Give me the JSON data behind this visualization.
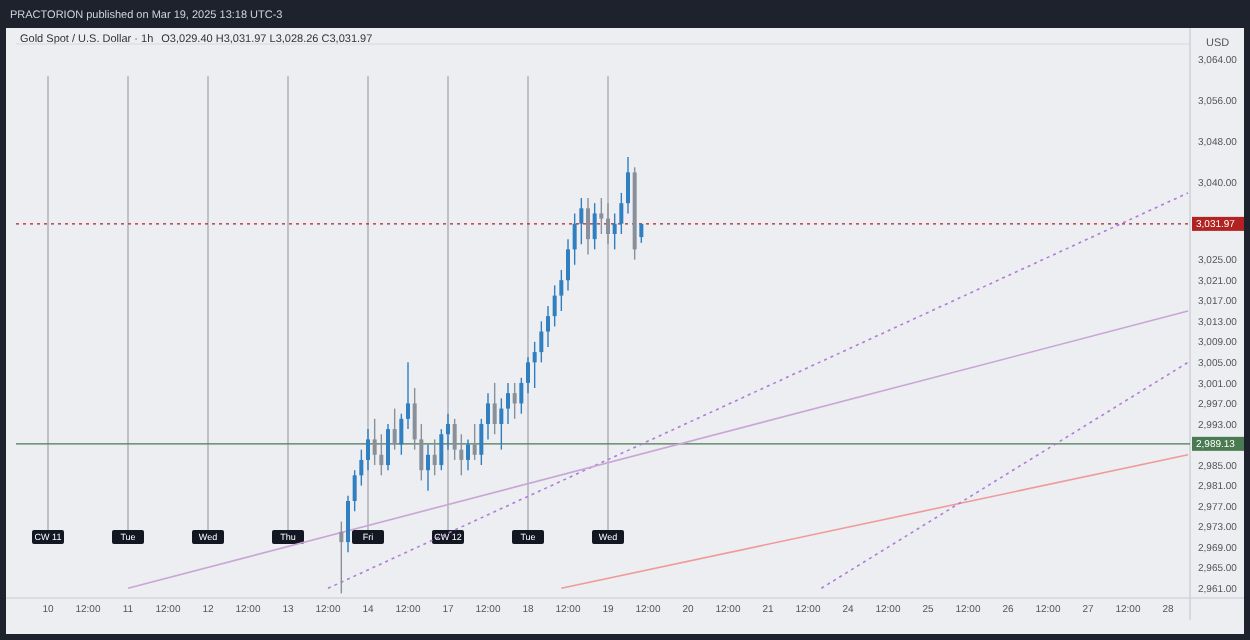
{
  "chart_data": {
    "type": "candlestick",
    "title": "Gold Spot / U.S. Dollar · 1h",
    "subtitle": "O3,029.40 H3,031.97 L3,028.26 C3,031.97",
    "annotations": [
      "PRACTORION published on Mar 19, 2025 13:18 UTC-3",
      {
        "text": "CW 11",
        "x": "10",
        "y": 2971
      },
      {
        "text": "Tue",
        "x": "11",
        "y": 2971
      },
      {
        "text": "Wed",
        "x": "12",
        "y": 2971
      },
      {
        "text": "Thu",
        "x": "13",
        "y": 2971
      },
      {
        "text": "Fri",
        "x": "14",
        "y": 2971
      },
      {
        "text": "CW 12",
        "x": "17",
        "y": 2971
      },
      {
        "text": "Tue",
        "x": "18",
        "y": 2971
      },
      {
        "text": "Wed",
        "x": "19",
        "y": 2971
      }
    ],
    "ylabel": "USD",
    "categories": [
      null,
      null,
      null,
      null,
      "10",
      null,
      null,
      null,
      null,
      null,
      "12:00",
      null,
      null,
      null,
      null,
      null,
      "11",
      null,
      null,
      null,
      null,
      null,
      "12:00",
      null,
      null,
      null,
      null,
      null,
      "12",
      null,
      null,
      null,
      null,
      null,
      "12:00",
      null,
      null,
      null,
      null,
      null,
      "13",
      null,
      null,
      null,
      null,
      null,
      "12:00",
      null,
      null,
      null,
      null,
      null,
      "14",
      null,
      null,
      null,
      null,
      null,
      "12:00",
      null,
      null,
      null,
      null,
      null,
      "17",
      null,
      null,
      null,
      null,
      null,
      "12:00",
      null,
      null,
      null,
      null,
      null,
      "18",
      null,
      null,
      null,
      null,
      null,
      "12:00",
      null,
      null,
      null,
      null,
      null,
      "19",
      null,
      null,
      null,
      null,
      null,
      "12:00",
      null,
      null,
      null,
      null,
      null,
      "20",
      null,
      null,
      null,
      null,
      null,
      "12:00",
      null,
      null,
      null,
      null,
      null,
      "21",
      null,
      null,
      null,
      null,
      null,
      "12:00",
      null,
      null,
      null,
      null,
      null,
      "24",
      null,
      null,
      null,
      null,
      null,
      "12:00",
      null,
      null,
      null,
      null,
      null,
      "25",
      null,
      null,
      null,
      null,
      null,
      "12:00",
      null,
      null,
      null,
      null,
      null,
      "26",
      null,
      null,
      null,
      null,
      null,
      "12:00",
      null,
      null,
      null,
      null,
      null,
      "27",
      null,
      null,
      null,
      null,
      null,
      "12:00",
      null,
      null,
      null,
      null,
      null,
      "28",
      null,
      null,
      null
    ],
    "colors": [
      null,
      null,
      null,
      null,
      null,
      null,
      null,
      null,
      null,
      null,
      null,
      null,
      null,
      null,
      null,
      null,
      null,
      null,
      null,
      null,
      null,
      null,
      null,
      null,
      null,
      null,
      null,
      null,
      null,
      null,
      null,
      null,
      null,
      null,
      null,
      null,
      null,
      null,
      null,
      null,
      null,
      null,
      null,
      null,
      null,
      null,
      null,
      null,
      "#8a9099",
      "#2f7fc1",
      "#2f7fc1",
      "#2f7fc1",
      "#2f7fc1",
      "#8a9099",
      "#8a9099",
      "#2f7fc1",
      "#8a9099",
      "#2f7fc1",
      "#2f7fc1",
      "#8a9099",
      "#8a9099",
      "#2f7fc1",
      "#8a9099",
      "#2f7fc1",
      "#2f7fc1",
      "#8a9099",
      "#8a9099",
      "#2f7fc1",
      "#8a9099",
      "#2f7fc1",
      "#2f7fc1",
      "#8a9099",
      "#2f7fc1",
      "#2f7fc1",
      "#8a9099",
      "#2f7fc1",
      "#2f7fc1",
      "#2f7fc1",
      "#2f7fc1",
      "#2f7fc1",
      "#2f7fc1",
      "#2f7fc1",
      "#2f7fc1",
      "#2f7fc1",
      "#2f7fc1",
      "#8a9099",
      "#2f7fc1",
      "#8a9099",
      "#8a9099",
      "#2f7fc1",
      "#2f7fc1",
      "#2f7fc1",
      "#8a9099",
      "#2f7fc1",
      null,
      null,
      null,
      null,
      null,
      null,
      null,
      null,
      null,
      null,
      null,
      null,
      null,
      null,
      null,
      null,
      null,
      null,
      null,
      null,
      null,
      null,
      null,
      null,
      null,
      null,
      null,
      null,
      null,
      null,
      null,
      null,
      null,
      null,
      null,
      null,
      null,
      null,
      null,
      null,
      null,
      null,
      null,
      null,
      null,
      null,
      null,
      null,
      null,
      null,
      null,
      null,
      null,
      null,
      null,
      null,
      null,
      null,
      null,
      null,
      null,
      null,
      null,
      null,
      null,
      null,
      null,
      null,
      null,
      null,
      null,
      null,
      null,
      null,
      null,
      null,
      null,
      null,
      null,
      null,
      null,
      null
    ],
    "ohlc": [
      null,
      null,
      null,
      null,
      null,
      null,
      null,
      null,
      null,
      null,
      null,
      null,
      null,
      null,
      null,
      null,
      null,
      null,
      null,
      null,
      null,
      null,
      null,
      null,
      null,
      null,
      null,
      null,
      null,
      null,
      null,
      null,
      null,
      null,
      null,
      null,
      null,
      null,
      null,
      null,
      null,
      null,
      null,
      null,
      null,
      null,
      null,
      null,
      [
        2972,
        2974,
        2960,
        2970
      ],
      [
        2970,
        2979,
        2968,
        2978
      ],
      [
        2978,
        2984,
        2976,
        2983
      ],
      [
        2983,
        2988,
        2981,
        2986
      ],
      [
        2986,
        2992,
        2984,
        2990
      ],
      [
        2990,
        2994,
        2985,
        2987
      ],
      [
        2987,
        2991,
        2983,
        2985
      ],
      [
        2985,
        2993,
        2984,
        2992
      ],
      [
        2992,
        2996,
        2988,
        2989
      ],
      [
        2989,
        2995,
        2987,
        2994
      ],
      [
        2994,
        3005,
        2992,
        2997
      ],
      [
        2997,
        3000,
        2988,
        2990
      ],
      [
        2990,
        2993,
        2982,
        2984
      ],
      [
        2984,
        2989,
        2980,
        2987
      ],
      [
        2987,
        2990,
        2983,
        2985
      ],
      [
        2985,
        2992,
        2984,
        2991
      ],
      [
        2991,
        2995,
        2988,
        2993
      ],
      [
        2993,
        2994,
        2986,
        2988
      ],
      [
        2988,
        2991,
        2983,
        2986
      ],
      [
        2986,
        2990,
        2984,
        2989
      ],
      [
        2989,
        2993,
        2986,
        2987
      ],
      [
        2987,
        2994,
        2985,
        2993
      ],
      [
        2993,
        2999,
        2990,
        2997
      ],
      [
        2997,
        3001,
        2991,
        2993
      ],
      [
        2993,
        2998,
        2988,
        2996
      ],
      [
        2996,
        3001,
        2993,
        2999
      ],
      [
        2999,
        3001,
        2994,
        2997
      ],
      [
        2997,
        3002,
        2995,
        3001
      ],
      [
        3001,
        3006,
        2999,
        3005
      ],
      [
        3005,
        3009,
        3000,
        3007
      ],
      [
        3007,
        3013,
        3005,
        3011
      ],
      [
        3011,
        3016,
        3008,
        3014
      ],
      [
        3014,
        3020,
        3012,
        3018
      ],
      [
        3018,
        3023,
        3015,
        3021
      ],
      [
        3021,
        3029,
        3019,
        3027
      ],
      [
        3027,
        3034,
        3024,
        3032
      ],
      [
        3032,
        3037,
        3028,
        3035
      ],
      [
        3035,
        3037,
        3026,
        3029
      ],
      [
        3029,
        3036,
        3027,
        3034
      ],
      [
        3034,
        3037,
        3030,
        3033
      ],
      [
        3033,
        3036,
        3028,
        3030
      ],
      [
        3030,
        3034,
        3027,
        3032
      ],
      [
        3032,
        3038,
        3030,
        3036
      ],
      [
        3036,
        3045,
        3034,
        3042
      ],
      [
        3042,
        3043,
        3025,
        3027
      ],
      [
        3029.4,
        3031.97,
        3028.26,
        3031.97
      ],
      null,
      null,
      null,
      null,
      null,
      null,
      null,
      null,
      null,
      null,
      null,
      null,
      null,
      null,
      null,
      null,
      null,
      null,
      null,
      null,
      null,
      null,
      null,
      null,
      null,
      null,
      null,
      null,
      null,
      null,
      null,
      null,
      null,
      null,
      null,
      null,
      null,
      null,
      null,
      null,
      null,
      null,
      null,
      null,
      null,
      null,
      null,
      null,
      null,
      null,
      null,
      null,
      null,
      null,
      null,
      null,
      null,
      null,
      null,
      null,
      null,
      null,
      null,
      null,
      null,
      null,
      null,
      null,
      null,
      null,
      null,
      null,
      null,
      null,
      null,
      null,
      null,
      null,
      null,
      null,
      null,
      null
    ],
    "series": [
      {
        "type": "line",
        "color": "#b07cd8",
        "line_style": "dotted",
        "values": [
          null,
          null,
          null,
          null,
          null,
          null,
          null,
          null,
          null,
          null,
          null,
          null,
          null,
          null,
          null,
          null,
          null,
          null,
          null,
          null,
          null,
          null,
          null,
          null,
          null,
          null,
          null,
          null,
          null,
          null,
          null,
          null,
          null,
          null,
          null,
          null,
          null,
          null,
          null,
          null,
          null,
          null,
          null,
          null,
          null,
          null,
          2961,
          null,
          null,
          null,
          null,
          null,
          null,
          null,
          null,
          null,
          null,
          null,
          null,
          null,
          null,
          null,
          null,
          null,
          null,
          null,
          null,
          null,
          null,
          null,
          null,
          null,
          null,
          null,
          null,
          null,
          null,
          null,
          null,
          null,
          null,
          null,
          null,
          null,
          null,
          null,
          null,
          null,
          null,
          null,
          null,
          null,
          null,
          null,
          null,
          null,
          null,
          null,
          null,
          null,
          null,
          null,
          null,
          null,
          null,
          null,
          null,
          null,
          null,
          null,
          null,
          null,
          null,
          null,
          null,
          null,
          null,
          null,
          null,
          null,
          null,
          null,
          null,
          null,
          null,
          null,
          null,
          null,
          null,
          null,
          null,
          null,
          null,
          null,
          null,
          null,
          null,
          null,
          null,
          null,
          null,
          null,
          null,
          null,
          null,
          null,
          null,
          null,
          null,
          null,
          null,
          null,
          null,
          null,
          null,
          null,
          null,
          null,
          null,
          null,
          null,
          null,
          null,
          null,
          null,
          null,
          null,
          null,
          null,
          null,
          null,
          null,
          null,
          null,
          null,
          3038
        ]
      },
      {
        "type": "line",
        "color": "#c9a6d6",
        "line_style": "solid",
        "values": [
          null,
          null,
          null,
          null,
          null,
          null,
          null,
          null,
          null,
          null,
          null,
          null,
          null,
          null,
          null,
          null,
          2961,
          null,
          null,
          null,
          null,
          null,
          null,
          null,
          null,
          null,
          null,
          null,
          null,
          null,
          null,
          null,
          null,
          null,
          null,
          null,
          null,
          null,
          null,
          null,
          null,
          null,
          null,
          null,
          null,
          null,
          null,
          null,
          null,
          null,
          null,
          null,
          null,
          null,
          null,
          null,
          null,
          null,
          null,
          null,
          null,
          null,
          null,
          null,
          null,
          null,
          null,
          null,
          null,
          null,
          null,
          null,
          null,
          null,
          null,
          null,
          null,
          null,
          null,
          null,
          null,
          null,
          null,
          null,
          null,
          null,
          null,
          null,
          null,
          null,
          null,
          null,
          null,
          null,
          null,
          null,
          null,
          null,
          null,
          null,
          null,
          null,
          null,
          null,
          null,
          null,
          null,
          null,
          null,
          null,
          null,
          null,
          null,
          null,
          null,
          null,
          null,
          null,
          null,
          null,
          null,
          null,
          null,
          null,
          null,
          null,
          null,
          null,
          null,
          null,
          null,
          null,
          null,
          null,
          null,
          null,
          null,
          null,
          null,
          null,
          null,
          null,
          null,
          null,
          null,
          null,
          null,
          null,
          null,
          null,
          null,
          null,
          null,
          null,
          null,
          null,
          null,
          null,
          null,
          null,
          null,
          null,
          null,
          null,
          null,
          null,
          null,
          null,
          null,
          null,
          null,
          null,
          null,
          null,
          null,
          3015
        ]
      },
      {
        "type": "line",
        "color": "#f09a9a",
        "line_style": "solid",
        "values": [
          null,
          null,
          null,
          null,
          null,
          null,
          null,
          null,
          null,
          null,
          null,
          null,
          null,
          null,
          null,
          null,
          null,
          null,
          null,
          null,
          null,
          null,
          null,
          null,
          null,
          null,
          null,
          null,
          null,
          null,
          null,
          null,
          null,
          null,
          null,
          null,
          null,
          null,
          null,
          null,
          null,
          null,
          null,
          null,
          null,
          null,
          null,
          null,
          null,
          null,
          null,
          null,
          null,
          null,
          null,
          null,
          null,
          null,
          null,
          null,
          null,
          null,
          null,
          null,
          null,
          null,
          null,
          null,
          null,
          null,
          null,
          null,
          null,
          null,
          null,
          null,
          null,
          null,
          null,
          null,
          null,
          2961,
          null,
          null,
          null,
          null,
          null,
          null,
          null,
          null,
          null,
          null,
          null,
          null,
          null,
          null,
          null,
          null,
          null,
          null,
          null,
          null,
          null,
          null,
          null,
          null,
          null,
          null,
          null,
          null,
          null,
          null,
          null,
          null,
          null,
          null,
          null,
          null,
          null,
          null,
          null,
          null,
          null,
          null,
          null,
          null,
          null,
          null,
          null,
          null,
          null,
          null,
          null,
          null,
          null,
          null,
          null,
          null,
          null,
          null,
          null,
          null,
          null,
          null,
          null,
          null,
          null,
          null,
          null,
          null,
          null,
          null,
          null,
          null,
          null,
          null,
          null,
          null,
          null,
          null,
          null,
          null,
          null,
          null,
          null,
          null,
          null,
          null,
          null,
          null,
          null,
          null,
          null,
          null,
          null,
          2987
        ]
      },
      {
        "type": "line",
        "color": "#b07cd8",
        "line_style": "dotted",
        "values": [
          null,
          null,
          null,
          null,
          null,
          null,
          null,
          null,
          null,
          null,
          null,
          null,
          null,
          null,
          null,
          null,
          null,
          null,
          null,
          null,
          null,
          null,
          null,
          null,
          null,
          null,
          null,
          null,
          null,
          null,
          null,
          null,
          null,
          null,
          null,
          null,
          null,
          null,
          null,
          null,
          null,
          null,
          null,
          null,
          null,
          null,
          null,
          null,
          null,
          null,
          null,
          null,
          null,
          null,
          null,
          null,
          null,
          null,
          null,
          null,
          null,
          null,
          null,
          null,
          null,
          null,
          null,
          null,
          null,
          null,
          null,
          null,
          null,
          null,
          null,
          null,
          null,
          null,
          null,
          null,
          null,
          null,
          null,
          null,
          null,
          null,
          null,
          null,
          null,
          null,
          null,
          null,
          null,
          null,
          null,
          null,
          null,
          null,
          null,
          null,
          null,
          null,
          null,
          null,
          null,
          null,
          null,
          null,
          null,
          null,
          null,
          null,
          null,
          null,
          null,
          null,
          null,
          null,
          null,
          null,
          2961,
          null,
          null,
          null,
          null,
          null,
          null,
          null,
          null,
          null,
          null,
          null,
          null,
          null,
          null,
          null,
          null,
          null,
          null,
          null,
          null,
          null,
          null,
          null,
          null,
          null,
          null,
          null,
          null,
          null,
          null,
          null,
          null,
          null,
          null,
          null,
          null,
          null,
          null,
          null,
          null,
          null,
          null,
          null,
          null,
          null,
          null,
          null,
          null,
          null,
          null,
          null,
          null,
          null,
          null,
          3005
        ]
      }
    ],
    "ylim": [
      2959.5,
      3067
    ],
    "yticks": [
      {
        "value": 2961,
        "label": "2,961.00"
      },
      {
        "value": 2965,
        "label": "2,965.00"
      },
      {
        "value": 2969,
        "label": "2,969.00"
      },
      {
        "value": 2973,
        "label": "2,973.00"
      },
      {
        "value": 2977,
        "label": "2,977.00"
      },
      {
        "value": 2981,
        "label": "2,981.00"
      },
      {
        "value": 2985,
        "label": "2,985.00"
      },
      {
        "value": 2993,
        "label": "2,993.00"
      },
      {
        "value": 2997,
        "label": "2,997.00"
      },
      {
        "value": 3001,
        "label": "3,001.00"
      },
      {
        "value": 3005,
        "label": "3,005.00"
      },
      {
        "value": 3009,
        "label": "3,009.00"
      },
      {
        "value": 3013,
        "label": "3,013.00"
      },
      {
        "value": 3017,
        "label": "3,017.00"
      },
      {
        "value": 3021,
        "label": "3,021.00"
      },
      {
        "value": 3025,
        "label": "3,025.00"
      },
      {
        "value": 3040,
        "label": "3,040.00"
      },
      {
        "value": 3048,
        "label": "3,048.00"
      },
      {
        "value": 3056,
        "label": "3,056.00"
      },
      {
        "value": 3064,
        "label": "3,064.00"
      }
    ],
    "ref_lines": [
      {
        "axis": "y",
        "value": 3031.97,
        "label": "3,031.97",
        "color": "#b22222",
        "line_style": "dotted"
      },
      {
        "axis": "y",
        "value": 2989.13,
        "label": "2,989.13",
        "color": "#4a7a50",
        "line_style": "solid"
      }
    ]
  }
}
